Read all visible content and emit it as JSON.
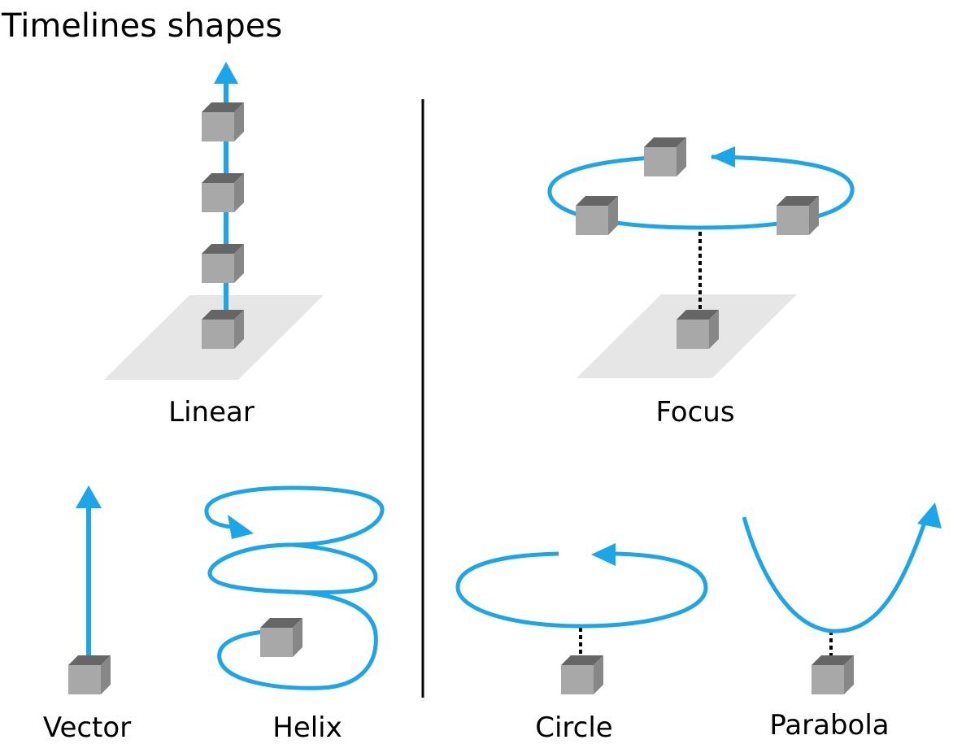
{
  "title": "Timelines shapes",
  "labels": {
    "linear": "Linear",
    "focus": "Focus",
    "vector": "Vector",
    "helix": "Helix",
    "circle": "Circle",
    "parabola": "Parabola"
  },
  "colors": {
    "timeline": "#1aa6e8",
    "cube_top": "#666666",
    "cube_front": "#a8a8a8",
    "cube_side": "#878787",
    "plane": "#e6e6e6",
    "divider": "#000000",
    "connector": "#000000"
  }
}
